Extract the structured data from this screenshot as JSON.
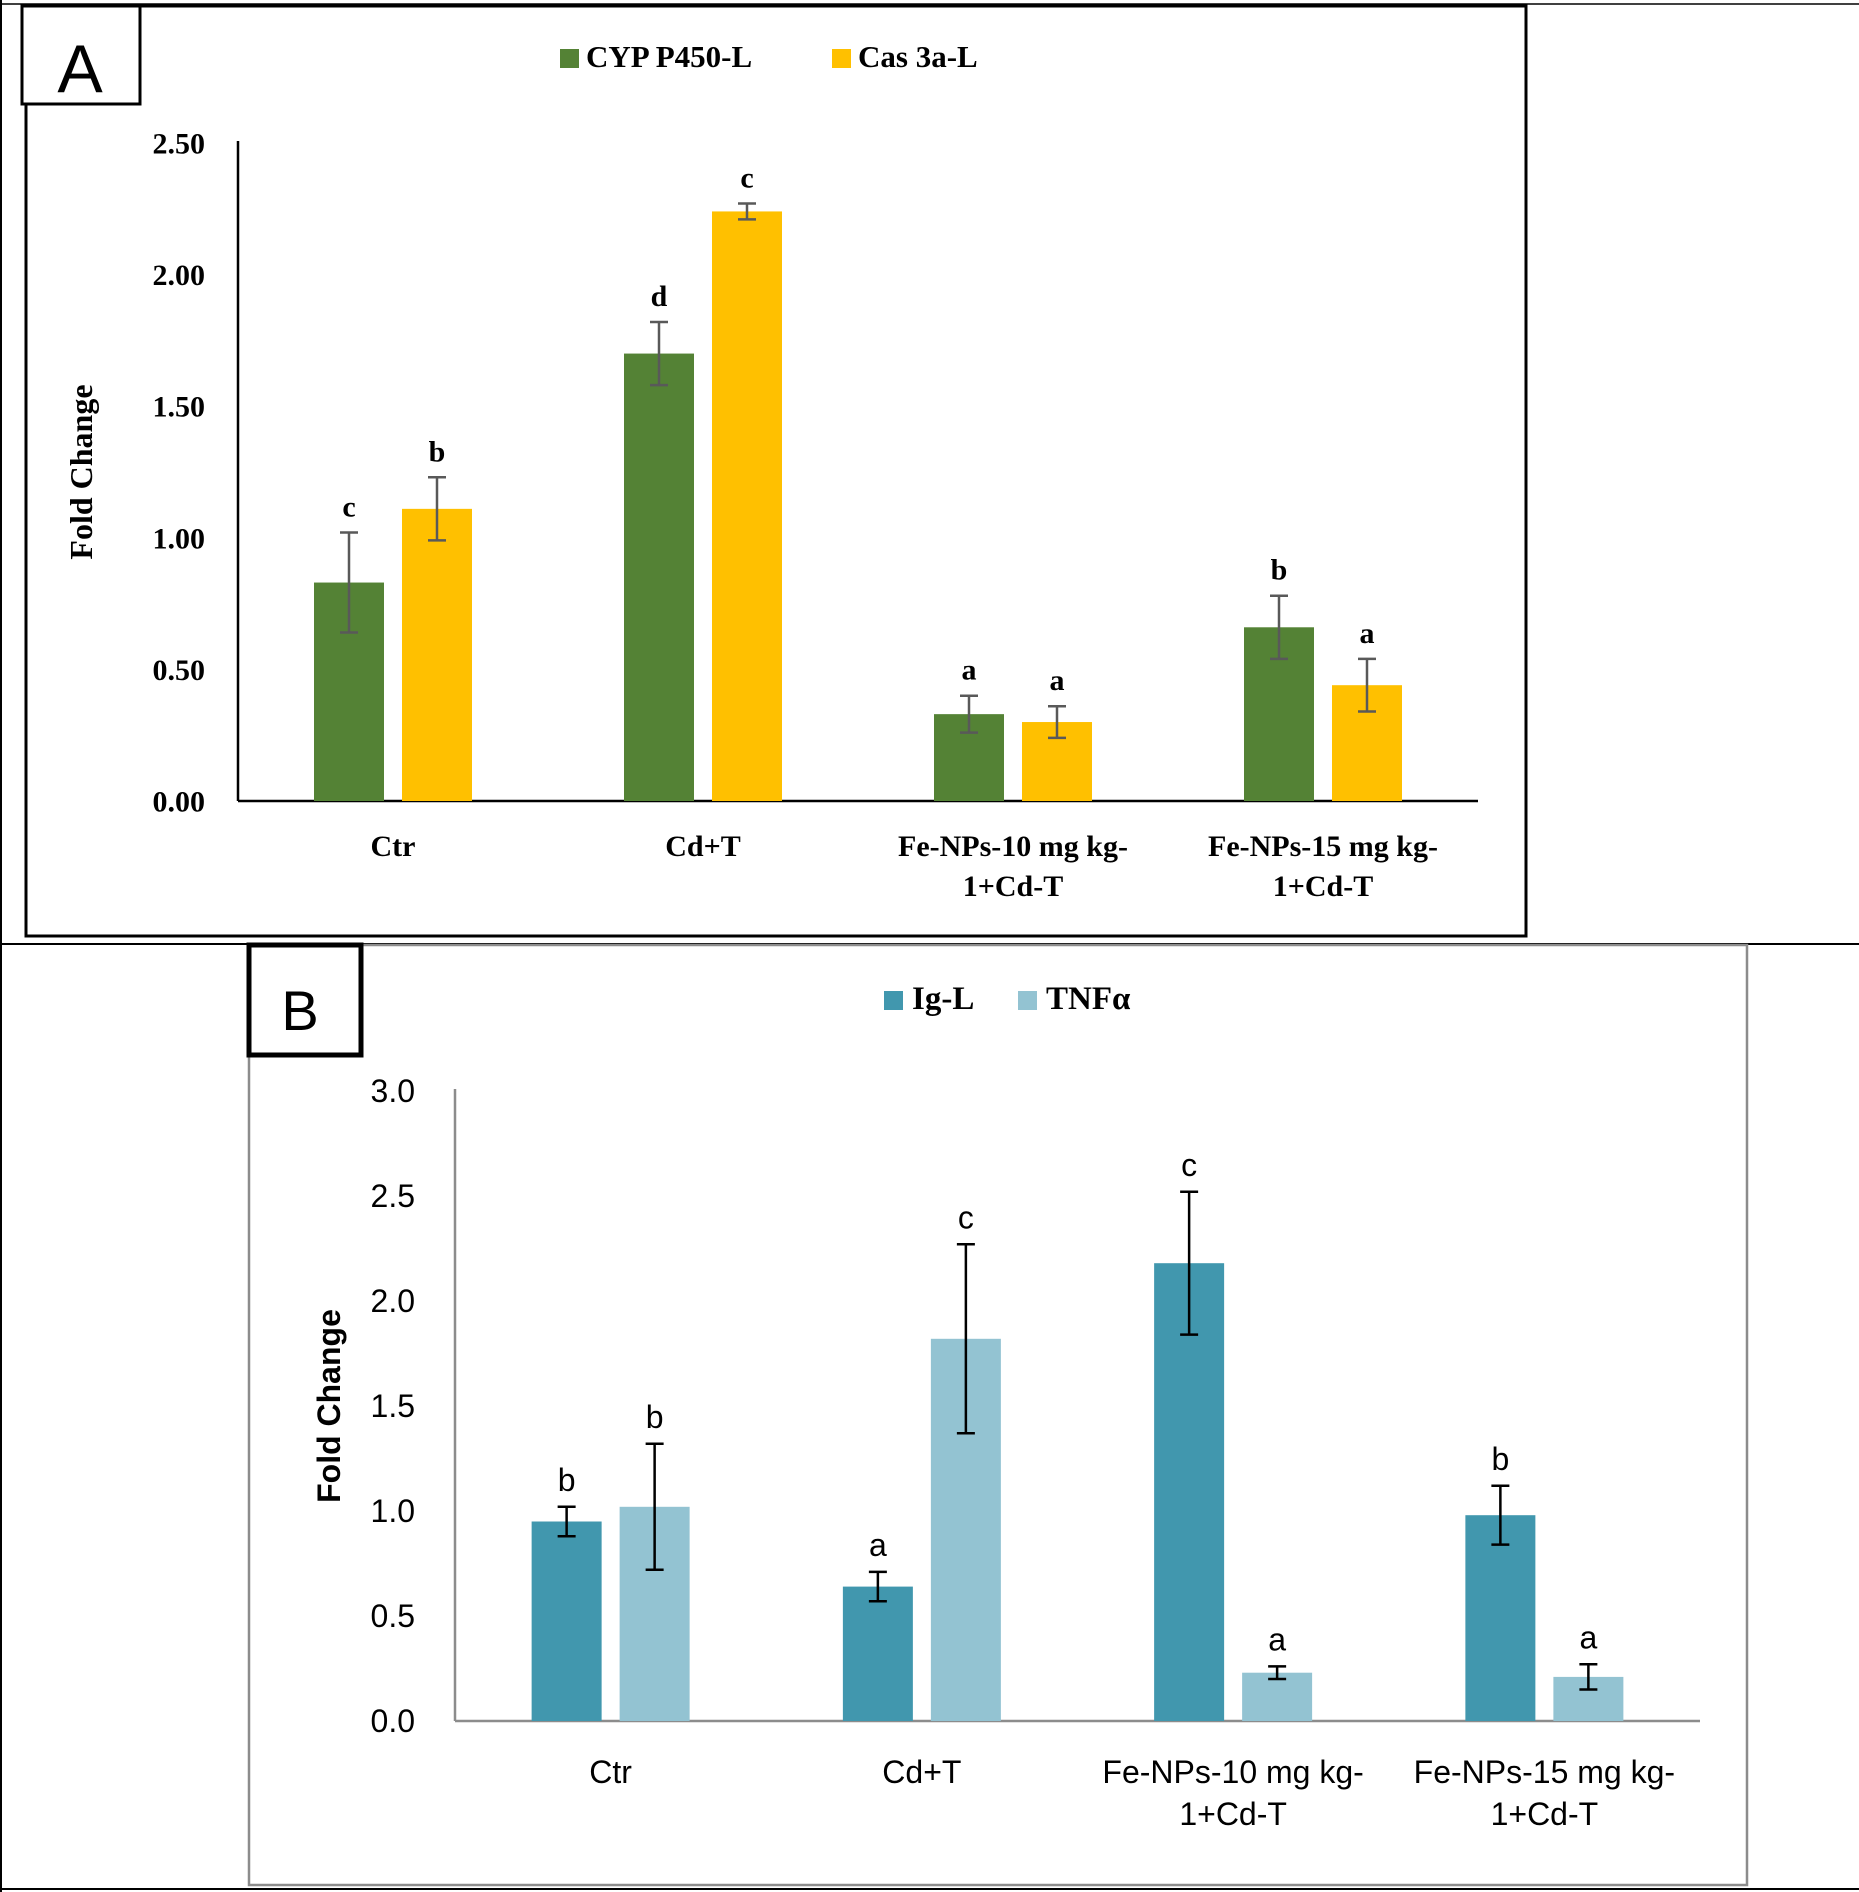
{
  "chart_data": [
    {
      "panel_label": "A",
      "type": "bar",
      "title": "",
      "xlabel": "",
      "ylabel": "Fold Change",
      "ylim": [
        0,
        2.5
      ],
      "yticks": [
        "0.00",
        "0.50",
        "1.00",
        "1.50",
        "2.00",
        "2.50"
      ],
      "ytick_values": [
        0,
        0.5,
        1,
        1.5,
        2,
        2.5
      ],
      "categories": [
        [
          "Ctr"
        ],
        [
          "Cd+T"
        ],
        [
          "Fe-NPs-10 mg kg-",
          "1+Cd-T"
        ],
        [
          "Fe-NPs-15 mg kg-",
          "1+Cd-T"
        ]
      ],
      "legend_position": "top-center",
      "series": [
        {
          "name": "CYP P450-L",
          "color": "#548235",
          "values": [
            0.83,
            1.7,
            0.33,
            0.66
          ],
          "errors": [
            0.19,
            0.12,
            0.07,
            0.12
          ],
          "letters": [
            "c",
            "d",
            "a",
            "b"
          ]
        },
        {
          "name": "Cas 3a-L",
          "color": "#FFC000",
          "values": [
            1.11,
            2.24,
            0.3,
            0.44
          ],
          "errors": [
            0.12,
            0.03,
            0.06,
            0.1
          ],
          "letters": [
            "b",
            "c",
            "a",
            "a"
          ]
        }
      ]
    },
    {
      "panel_label": "B",
      "type": "bar",
      "title": "",
      "xlabel": "",
      "ylabel": "Fold Change",
      "ylim": [
        0,
        3.0
      ],
      "yticks": [
        "0.0",
        "0.5",
        "1.0",
        "1.5",
        "2.0",
        "2.5",
        "3.0"
      ],
      "ytick_values": [
        0,
        0.5,
        1,
        1.5,
        2,
        2.5,
        3
      ],
      "categories": [
        [
          "Ctr"
        ],
        [
          "Cd+T"
        ],
        [
          "Fe-NPs-10 mg kg-",
          "1+Cd-T"
        ],
        [
          "Fe-NPs-15 mg kg-",
          "1+Cd-T"
        ]
      ],
      "legend_position": "top-center",
      "series": [
        {
          "name": "Ig-L",
          "color": "#4197AE",
          "values": [
            0.95,
            0.64,
            2.18,
            0.98
          ],
          "errors": [
            0.07,
            0.07,
            0.34,
            0.14
          ],
          "letters": [
            "b",
            "a",
            "c",
            "b"
          ]
        },
        {
          "name": "TNFα",
          "color": "#93C3D2",
          "values": [
            1.02,
            1.82,
            0.23,
            0.21
          ],
          "errors": [
            0.3,
            0.45,
            0.03,
            0.06
          ],
          "letters": [
            "b",
            "c",
            "a",
            "a"
          ]
        }
      ]
    }
  ]
}
